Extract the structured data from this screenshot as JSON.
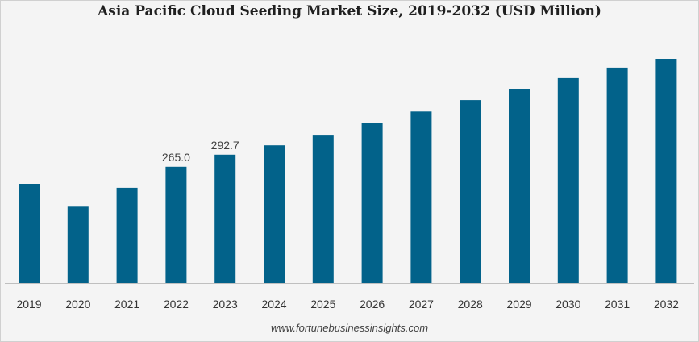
{
  "chart_data": {
    "type": "bar",
    "title": "Asia Pacific Cloud Seeding Market Size, 2019-2032 (USD Million)",
    "categories": [
      "2019",
      "2020",
      "2021",
      "2022",
      "2023",
      "2024",
      "2025",
      "2026",
      "2027",
      "2028",
      "2029",
      "2030",
      "2031",
      "2032"
    ],
    "values": [
      226,
      174,
      217,
      265.0,
      292.7,
      314,
      338,
      365,
      391,
      417,
      443,
      467,
      491,
      511
    ],
    "data_labels": {
      "2022": "265.0",
      "2023": "292.7"
    },
    "xlabel": "",
    "ylabel": "",
    "ylim": [
      0,
      550
    ],
    "grid": false,
    "legend": "none",
    "bar_color": "#02628a"
  },
  "source": "www.fortunebusinessinsights.com"
}
